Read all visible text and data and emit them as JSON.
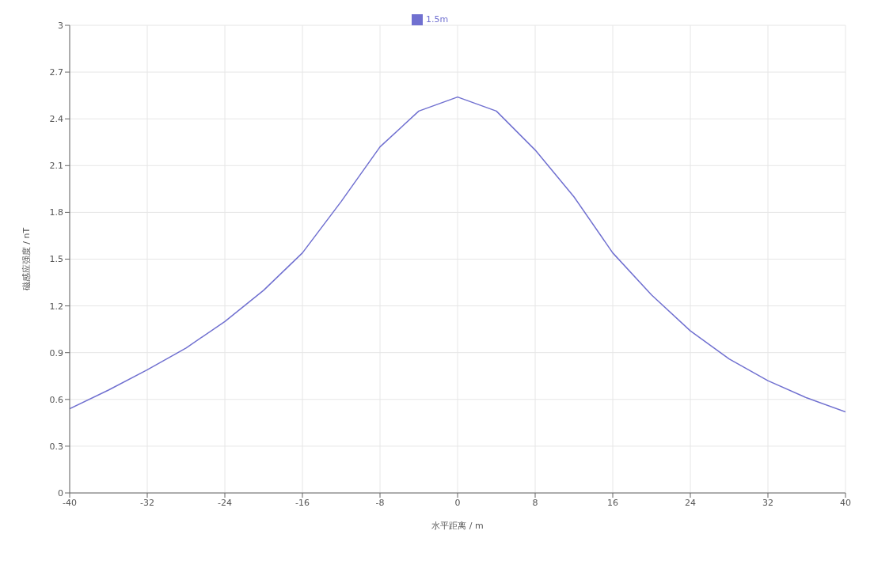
{
  "chart_data": {
    "type": "line",
    "xlabel": "水平距离 / m",
    "ylabel": "磁感应强度 / nT",
    "legend": "top",
    "grid": true,
    "marker": "none",
    "line_style": "solid",
    "xlim": [
      -40,
      40
    ],
    "xticks": [
      -40,
      -32,
      -24,
      -16,
      -8,
      0,
      8,
      16,
      24,
      32,
      40
    ],
    "ylim": [
      0,
      3
    ],
    "yticks": [
      0,
      0.3,
      0.6,
      0.9,
      1.2,
      1.5,
      1.8,
      2.1,
      2.4,
      2.7,
      3
    ],
    "x": [
      -40,
      -36,
      -32,
      -28,
      -24,
      -20,
      -16,
      -12,
      -8,
      -4,
      0,
      4,
      8,
      12,
      16,
      20,
      24,
      28,
      32,
      36,
      40
    ],
    "series": [
      {
        "name": "1.5m",
        "color": "#7070d0",
        "values": [
          0.54,
          0.66,
          0.79,
          0.93,
          1.1,
          1.3,
          1.54,
          1.87,
          2.22,
          2.45,
          2.54,
          2.45,
          2.2,
          1.9,
          1.54,
          1.27,
          1.04,
          0.86,
          0.72,
          0.61,
          0.52
        ]
      }
    ]
  }
}
